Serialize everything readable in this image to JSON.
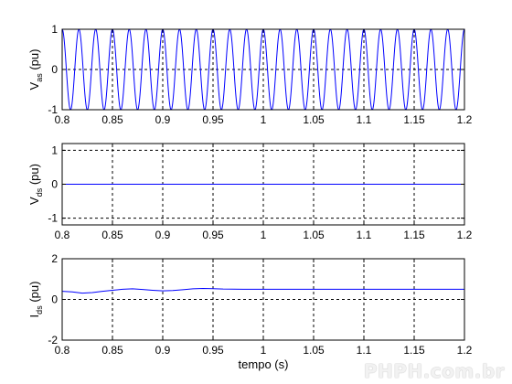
{
  "chart_data": [
    {
      "type": "line",
      "ylabel_main": "V",
      "ylabel_sub": "as",
      "ylabel_unit": " (pu)",
      "xlim": [
        0.8,
        1.2
      ],
      "ylim": [
        -1,
        1
      ],
      "xticks": [
        "0.8",
        "0.85",
        "0.9",
        "0.95",
        "1",
        "1.05",
        "1.1",
        "1.15",
        "1.2"
      ],
      "yticks": [
        "-1",
        "0",
        "1"
      ],
      "grid": true,
      "series": [
        {
          "function": "cosine",
          "amplitude": 1,
          "frequency_hz": 60,
          "phase_deg": 0,
          "color": "#0000ff"
        }
      ]
    },
    {
      "type": "line",
      "ylabel_main": "V",
      "ylabel_sub": "ds",
      "ylabel_unit": " (pu)",
      "xlim": [
        0.8,
        1.2
      ],
      "ylim": [
        -1.2,
        1.2
      ],
      "xticks": [
        "0.8",
        "0.85",
        "0.9",
        "0.95",
        "1",
        "1.05",
        "1.1",
        "1.15",
        "1.2"
      ],
      "yticks": [
        "-1",
        "0",
        "1"
      ],
      "grid": true,
      "series": [
        {
          "x": [
            0.8,
            1.2
          ],
          "y": [
            0,
            0
          ],
          "color": "#0000ff"
        }
      ]
    },
    {
      "type": "line",
      "ylabel_main": "I",
      "ylabel_sub": "ds",
      "ylabel_unit": " (pu)",
      "xlabel": "tempo (s)",
      "xlim": [
        0.8,
        1.2
      ],
      "ylim": [
        -2,
        2
      ],
      "xticks": [
        "0.8",
        "0.85",
        "0.9",
        "0.95",
        "1",
        "1.05",
        "1.1",
        "1.15",
        "1.2"
      ],
      "yticks": [
        "-2",
        "0",
        "2"
      ],
      "grid": true,
      "series": [
        {
          "x": [
            0.8,
            0.81,
            0.82,
            0.83,
            0.84,
            0.85,
            0.86,
            0.87,
            0.88,
            0.89,
            0.9,
            0.91,
            0.92,
            0.93,
            0.94,
            0.95,
            0.96,
            0.98,
            1.0,
            1.2
          ],
          "y": [
            0.4,
            0.37,
            0.31,
            0.34,
            0.4,
            0.45,
            0.5,
            0.52,
            0.49,
            0.45,
            0.42,
            0.44,
            0.48,
            0.52,
            0.54,
            0.53,
            0.51,
            0.5,
            0.5,
            0.5
          ],
          "color": "#0000ff"
        }
      ]
    }
  ],
  "watermark": "PHPH.com.br"
}
